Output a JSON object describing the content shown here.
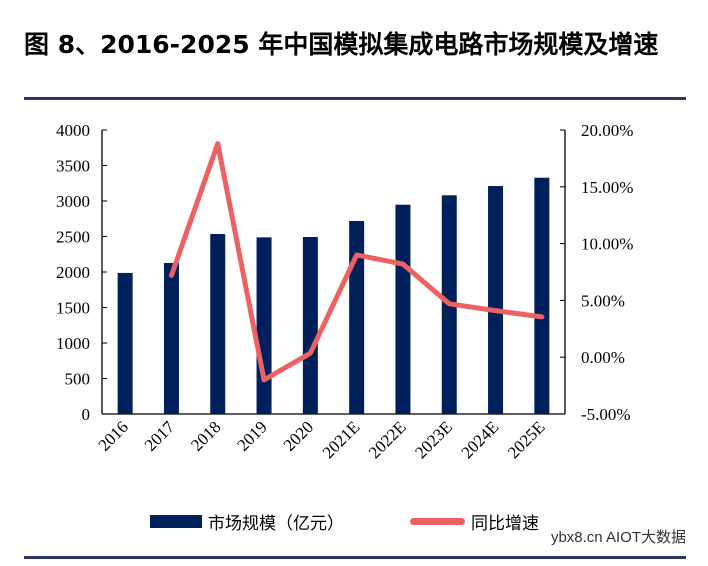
{
  "chart_data": {
    "type": "bar+line",
    "title": "图 8、2016-2025 年中国模拟集成电路市场规模及增速",
    "categories": [
      "2016",
      "2017",
      "2018",
      "2019",
      "2020",
      "2021E",
      "2022E",
      "2023E",
      "2024E",
      "2025E"
    ],
    "series": [
      {
        "name": "市场规模（亿元）",
        "type": "bar",
        "axis": "left",
        "color": "#00205b",
        "values": [
          1987,
          2127,
          2535,
          2488,
          2493,
          2718,
          2948,
          3080,
          3211,
          3328
        ]
      },
      {
        "name": "同比增速",
        "type": "line",
        "axis": "right",
        "color": "#ee6163",
        "values": [
          null,
          7.2,
          18.8,
          -2.0,
          0.35,
          9.0,
          8.2,
          4.7,
          4.1,
          3.55
        ]
      }
    ],
    "left_axis": {
      "ylim": [
        0,
        4000
      ],
      "ticks": [
        "0",
        "500",
        "1000",
        "1500",
        "2000",
        "2500",
        "3000",
        "3500",
        "4000"
      ]
    },
    "right_axis": {
      "ylim": [
        -5,
        20
      ],
      "ticks": [
        "-5.00%",
        "0.00%",
        "5.00%",
        "10.00%",
        "15.00%",
        "20.00%"
      ]
    },
    "legend": "bottom"
  },
  "watermark": "ybx8.cn AIOT大数据"
}
